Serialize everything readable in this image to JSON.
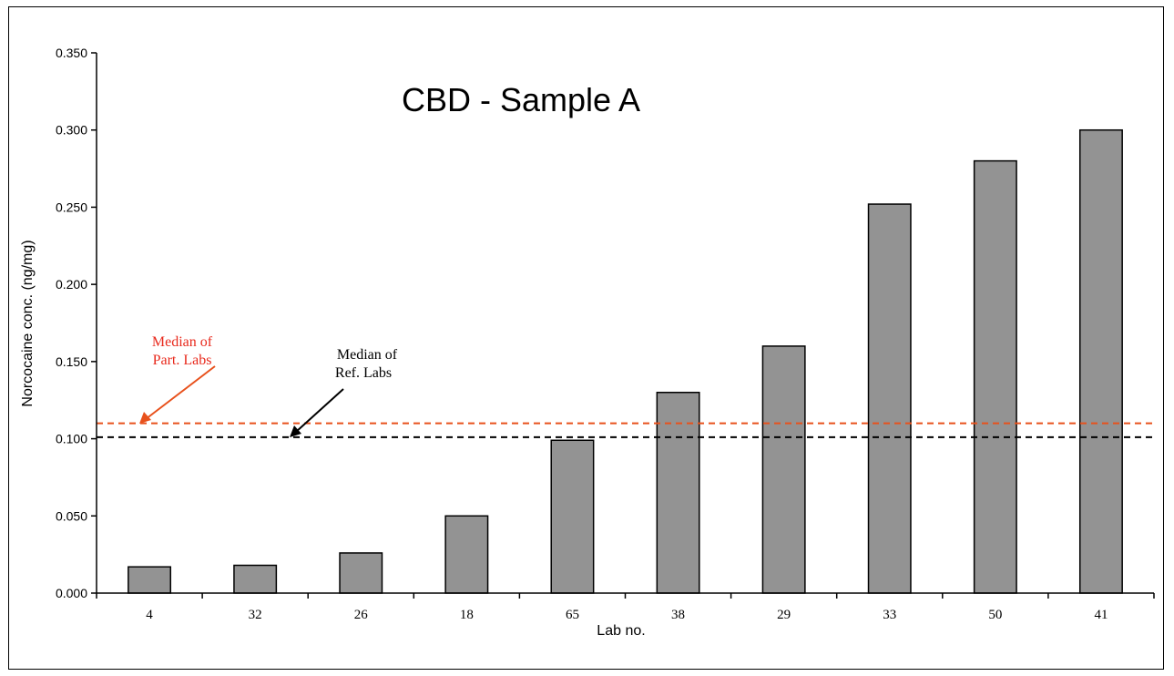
{
  "chart_data": {
    "type": "bar",
    "title": "CBD - Sample A",
    "xlabel": "Lab no.",
    "ylabel": "Norcocaine conc. (ng/mg)",
    "categories": [
      "4",
      "32",
      "26",
      "18",
      "65",
      "38",
      "29",
      "33",
      "50",
      "41"
    ],
    "values": [
      0.017,
      0.018,
      0.026,
      0.05,
      0.099,
      0.13,
      0.16,
      0.252,
      0.28,
      0.3
    ],
    "ylim": [
      0,
      0.35
    ],
    "yticks": [
      0.0,
      0.05,
      0.1,
      0.15,
      0.2,
      0.25,
      0.3,
      0.35
    ],
    "ytick_labels": [
      "0.000",
      "0.050",
      "0.100",
      "0.150",
      "0.200",
      "0.250",
      "0.300",
      "0.350"
    ],
    "bar_color": "#939393",
    "grid": false,
    "reference_lines": [
      {
        "label_line1": "Median of",
        "label_line2": "Part. Labs",
        "value": 0.11,
        "color": "#e8511c",
        "text_color": "#e8291c"
      },
      {
        "label_line1": "Median of",
        "label_line2": "Ref. Labs",
        "value": 0.101,
        "color": "#000000",
        "text_color": "#000000"
      }
    ]
  }
}
